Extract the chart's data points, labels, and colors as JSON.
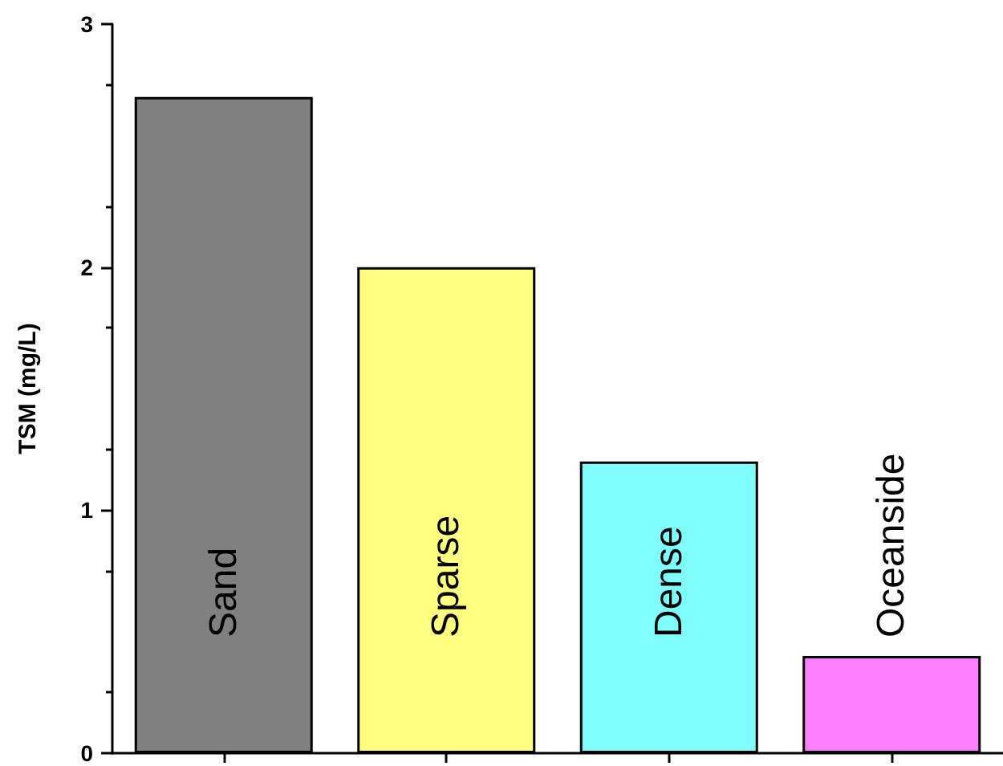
{
  "chart_data": {
    "type": "bar",
    "ylabel": "TSM (mg/L)",
    "categories": [
      "Sand",
      "Sparse",
      "Dense",
      "Oceanside"
    ],
    "values": [
      2.7,
      2.0,
      1.2,
      0.4
    ],
    "colors": [
      "#808080",
      "#ffff80",
      "#80ffff",
      "#ff80ff"
    ],
    "ylim": [
      0,
      3
    ],
    "yticks": [
      0,
      1,
      2,
      3
    ],
    "grid": false
  }
}
